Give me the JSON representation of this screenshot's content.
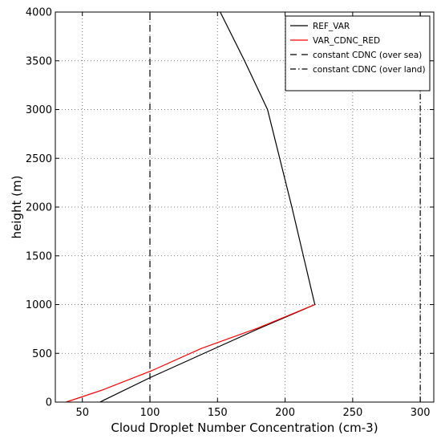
{
  "chart_data": {
    "type": "line",
    "xlabel": "Cloud Droplet Number Concentration (cm-3)",
    "ylabel": "height (m)",
    "xlim": [
      30,
      310
    ],
    "ylim": [
      0,
      4000
    ],
    "xticks": [
      50,
      100,
      150,
      200,
      250,
      300
    ],
    "yticks": [
      0,
      500,
      1000,
      1500,
      2000,
      2500,
      3000,
      3500,
      4000
    ],
    "grid": true,
    "legend_position": "top-right",
    "series": [
      {
        "name": "REF_VAR",
        "color": "#000000",
        "dash": "solid",
        "points": [
          [
            63,
            0
          ],
          [
            100,
            250
          ],
          [
            140,
            500
          ],
          [
            180,
            750
          ],
          [
            222,
            1000
          ],
          [
            205,
            2000
          ],
          [
            187,
            3000
          ],
          [
            170,
            3500
          ],
          [
            152,
            4000
          ]
        ]
      },
      {
        "name": "VAR_CDNC_RED",
        "color": "#ff0000",
        "dash": "solid",
        "points": [
          [
            38,
            0
          ],
          [
            65,
            125
          ],
          [
            101,
            320
          ],
          [
            138,
            550
          ],
          [
            180,
            760
          ],
          [
            222,
            1000
          ]
        ]
      },
      {
        "name": "constant CDNC (over sea)",
        "color": "#000000",
        "dash": "dashed",
        "points": [
          [
            100,
            0
          ],
          [
            100,
            4000
          ]
        ]
      },
      {
        "name": "constant CDNC (over land)",
        "color": "#000000",
        "dash": "dashdot",
        "points": [
          [
            300,
            0
          ],
          [
            300,
            4000
          ]
        ]
      }
    ]
  }
}
